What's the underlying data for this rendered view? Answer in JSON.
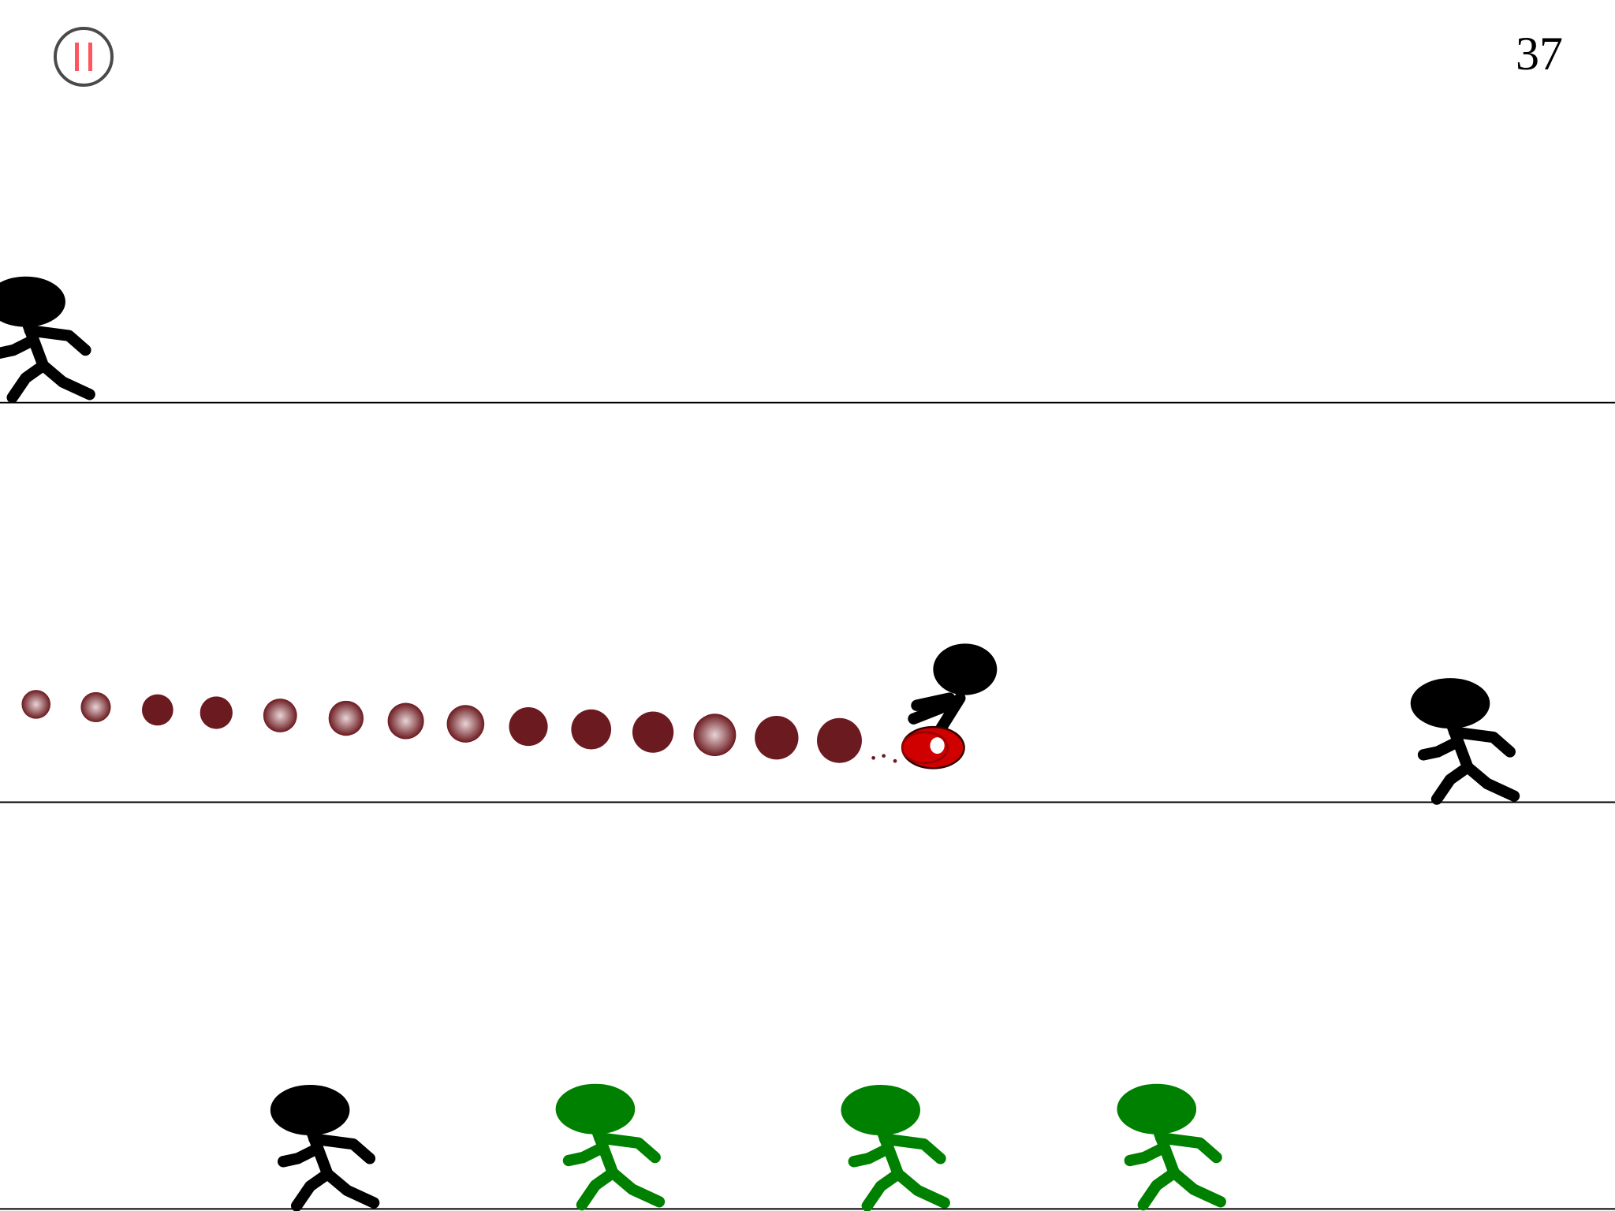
{
  "hud": {
    "score": "37",
    "pause_icon": "pause-icon"
  },
  "colors": {
    "pause_ring": "#4a4a4a",
    "pause_bars": "#ff5560",
    "player": "#000000",
    "enemy_green": "#008000",
    "trail": "#6b1a1f",
    "ring": "#e00000",
    "ground_line": "#000000"
  },
  "lanes": 3
}
